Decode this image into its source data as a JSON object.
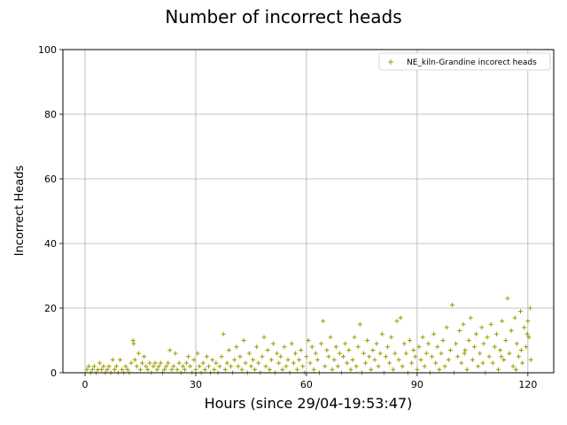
{
  "colors": {
    "series": "#9a9a00",
    "grid": "#b0b0b0"
  },
  "chart_data": {
    "type": "scatter",
    "title": "Number of incorrect heads",
    "xlabel": "Hours (since 29/04-19:53:47)",
    "ylabel": "Incorrect Heads",
    "xlim": [
      -6,
      127
    ],
    "ylim": [
      0,
      100
    ],
    "xticks": [
      0,
      30,
      60,
      90,
      120
    ],
    "yticks": [
      0,
      20,
      40,
      60,
      80,
      100
    ],
    "grid": true,
    "legend_position": "top-right",
    "marker": "plus",
    "series": [
      {
        "name": "NE_kiln-Grandine incorect heads",
        "color": "#9a9a00",
        "points": [
          [
            0.5,
            1
          ],
          [
            1,
            2
          ],
          [
            1.5,
            0
          ],
          [
            2,
            1
          ],
          [
            2.5,
            2
          ],
          [
            3,
            0
          ],
          [
            3.5,
            1
          ],
          [
            4,
            3
          ],
          [
            4.5,
            1
          ],
          [
            5,
            2
          ],
          [
            5.5,
            0
          ],
          [
            6,
            1
          ],
          [
            6.5,
            2
          ],
          [
            7,
            0
          ],
          [
            7.5,
            4
          ],
          [
            8,
            1
          ],
          [
            8.5,
            2
          ],
          [
            9,
            0
          ],
          [
            9.5,
            4
          ],
          [
            10,
            1
          ],
          [
            10.5,
            0
          ],
          [
            11,
            2
          ],
          [
            11.5,
            1
          ],
          [
            12,
            0
          ],
          [
            12.5,
            3
          ],
          [
            13,
            10
          ],
          [
            13.2,
            9
          ],
          [
            13.5,
            4
          ],
          [
            14,
            2
          ],
          [
            14.5,
            6
          ],
          [
            15,
            1
          ],
          [
            15.5,
            3
          ],
          [
            16,
            5
          ],
          [
            16.5,
            2
          ],
          [
            17,
            1
          ],
          [
            17.5,
            3
          ],
          [
            18,
            0
          ],
          [
            18.5,
            2
          ],
          [
            19,
            3
          ],
          [
            19.5,
            1
          ],
          [
            20,
            2
          ],
          [
            20.5,
            3
          ],
          [
            21,
            0
          ],
          [
            21.5,
            1
          ],
          [
            22,
            2
          ],
          [
            22.5,
            3
          ],
          [
            23,
            7
          ],
          [
            23.5,
            1
          ],
          [
            24,
            2
          ],
          [
            24.5,
            6
          ],
          [
            25,
            1
          ],
          [
            25.5,
            3
          ],
          [
            26,
            0
          ],
          [
            26.5,
            2
          ],
          [
            27,
            1
          ],
          [
            27.5,
            3
          ],
          [
            28,
            5
          ],
          [
            28.5,
            2
          ],
          [
            29,
            0
          ],
          [
            29.5,
            4
          ],
          [
            30,
            1
          ],
          [
            30.5,
            6
          ],
          [
            31,
            2
          ],
          [
            31.5,
            0
          ],
          [
            32,
            3
          ],
          [
            32.5,
            1
          ],
          [
            33,
            5
          ],
          [
            33.5,
            2
          ],
          [
            34,
            0
          ],
          [
            34.5,
            4
          ],
          [
            35,
            1
          ],
          [
            35.5,
            3
          ],
          [
            36,
            0
          ],
          [
            36.5,
            2
          ],
          [
            37,
            5
          ],
          [
            37.5,
            12
          ],
          [
            38,
            1
          ],
          [
            38.5,
            3
          ],
          [
            39,
            7
          ],
          [
            39.5,
            2
          ],
          [
            40,
            0
          ],
          [
            40.5,
            4
          ],
          [
            41,
            8
          ],
          [
            41.5,
            2
          ],
          [
            42,
            5
          ],
          [
            42.5,
            1
          ],
          [
            43,
            10
          ],
          [
            43.5,
            3
          ],
          [
            44,
            0
          ],
          [
            44.5,
            6
          ],
          [
            45,
            2
          ],
          [
            45.5,
            4
          ],
          [
            46,
            1
          ],
          [
            46.5,
            8
          ],
          [
            47,
            3
          ],
          [
            47.5,
            0
          ],
          [
            48,
            5
          ],
          [
            48.5,
            11
          ],
          [
            49,
            2
          ],
          [
            49.5,
            7
          ],
          [
            50,
            1
          ],
          [
            50.5,
            4
          ],
          [
            51,
            9
          ],
          [
            51.5,
            0
          ],
          [
            52,
            6
          ],
          [
            52.5,
            3
          ],
          [
            53,
            5
          ],
          [
            53.5,
            1
          ],
          [
            54,
            8
          ],
          [
            54.5,
            2
          ],
          [
            55,
            4
          ],
          [
            55.5,
            0
          ],
          [
            56,
            9
          ],
          [
            56.5,
            3
          ],
          [
            57,
            6
          ],
          [
            57.5,
            1
          ],
          [
            58,
            4
          ],
          [
            58.5,
            7
          ],
          [
            59,
            2
          ],
          [
            59.5,
            0
          ],
          [
            60,
            5
          ],
          [
            60.5,
            10
          ],
          [
            61,
            3
          ],
          [
            61.5,
            8
          ],
          [
            62,
            1
          ],
          [
            62.5,
            6
          ],
          [
            63,
            4
          ],
          [
            63.5,
            0
          ],
          [
            64,
            9
          ],
          [
            64.5,
            16
          ],
          [
            65,
            2
          ],
          [
            65.5,
            7
          ],
          [
            66,
            5
          ],
          [
            66.5,
            11
          ],
          [
            67,
            1
          ],
          [
            67.5,
            4
          ],
          [
            68,
            8
          ],
          [
            68.5,
            2
          ],
          [
            69,
            6
          ],
          [
            69.5,
            0
          ],
          [
            70,
            5
          ],
          [
            70.5,
            9
          ],
          [
            71,
            3
          ],
          [
            71.5,
            7
          ],
          [
            72,
            1
          ],
          [
            72.5,
            4
          ],
          [
            73,
            11
          ],
          [
            73.5,
            2
          ],
          [
            74,
            8
          ],
          [
            74.5,
            15
          ],
          [
            75,
            0
          ],
          [
            75.5,
            6
          ],
          [
            76,
            3
          ],
          [
            76.5,
            10
          ],
          [
            77,
            5
          ],
          [
            77.5,
            1
          ],
          [
            78,
            7
          ],
          [
            78.5,
            4
          ],
          [
            79,
            9
          ],
          [
            79.5,
            2
          ],
          [
            80,
            6
          ],
          [
            80.5,
            12
          ],
          [
            81,
            0
          ],
          [
            81.5,
            5
          ],
          [
            82,
            8
          ],
          [
            82.5,
            3
          ],
          [
            83,
            11
          ],
          [
            83.5,
            1
          ],
          [
            84,
            6
          ],
          [
            84.5,
            16
          ],
          [
            85,
            4
          ],
          [
            85.5,
            17
          ],
          [
            86,
            2
          ],
          [
            86.5,
            9
          ],
          [
            87,
            6
          ],
          [
            87.5,
            0
          ],
          [
            88,
            10
          ],
          [
            88.5,
            3
          ],
          [
            89,
            7
          ],
          [
            89.5,
            5
          ],
          [
            90,
            1
          ],
          [
            90.5,
            8
          ],
          [
            91,
            4
          ],
          [
            91.5,
            11
          ],
          [
            92,
            2
          ],
          [
            92.5,
            6
          ],
          [
            93,
            9
          ],
          [
            93.5,
            0
          ],
          [
            94,
            5
          ],
          [
            94.5,
            12
          ],
          [
            95,
            3
          ],
          [
            95.5,
            8
          ],
          [
            96,
            1
          ],
          [
            96.5,
            6
          ],
          [
            97,
            10
          ],
          [
            97.5,
            2
          ],
          [
            98,
            14
          ],
          [
            98.5,
            4
          ],
          [
            99,
            7
          ],
          [
            99.5,
            21
          ],
          [
            100,
            0
          ],
          [
            100.5,
            9
          ],
          [
            101,
            5
          ],
          [
            101.5,
            13
          ],
          [
            102,
            3
          ],
          [
            102.5,
            15
          ],
          [
            103,
            7
          ],
          [
            103.5,
            1
          ],
          [
            104,
            10
          ],
          [
            104.5,
            17
          ],
          [
            105,
            4
          ],
          [
            105.5,
            8
          ],
          [
            106,
            12
          ],
          [
            106.5,
            2
          ],
          [
            107,
            6
          ],
          [
            107.5,
            14
          ],
          [
            108,
            9
          ],
          [
            108.5,
            0
          ],
          [
            109,
            11
          ],
          [
            109.5,
            5
          ],
          [
            110,
            15
          ],
          [
            110.5,
            3
          ],
          [
            111,
            8
          ],
          [
            111.5,
            12
          ],
          [
            112,
            1
          ],
          [
            112.5,
            7
          ],
          [
            113,
            16
          ],
          [
            113.5,
            4
          ],
          [
            114,
            10
          ],
          [
            114.5,
            23
          ],
          [
            115,
            6
          ],
          [
            115.5,
            13
          ],
          [
            116,
            2
          ],
          [
            116.5,
            17
          ],
          [
            117,
            9
          ],
          [
            117.5,
            5
          ],
          [
            118,
            19
          ],
          [
            118.5,
            3
          ],
          [
            119,
            14
          ],
          [
            119.5,
            8
          ],
          [
            120,
            16
          ],
          [
            120.3,
            11
          ],
          [
            120.6,
            20
          ],
          [
            120.8,
            4
          ],
          [
            119.8,
            12
          ],
          [
            118.2,
            7
          ],
          [
            116.8,
            1
          ],
          [
            112.8,
            5
          ],
          [
            107.8,
            3
          ],
          [
            102.8,
            6
          ]
        ]
      }
    ]
  }
}
